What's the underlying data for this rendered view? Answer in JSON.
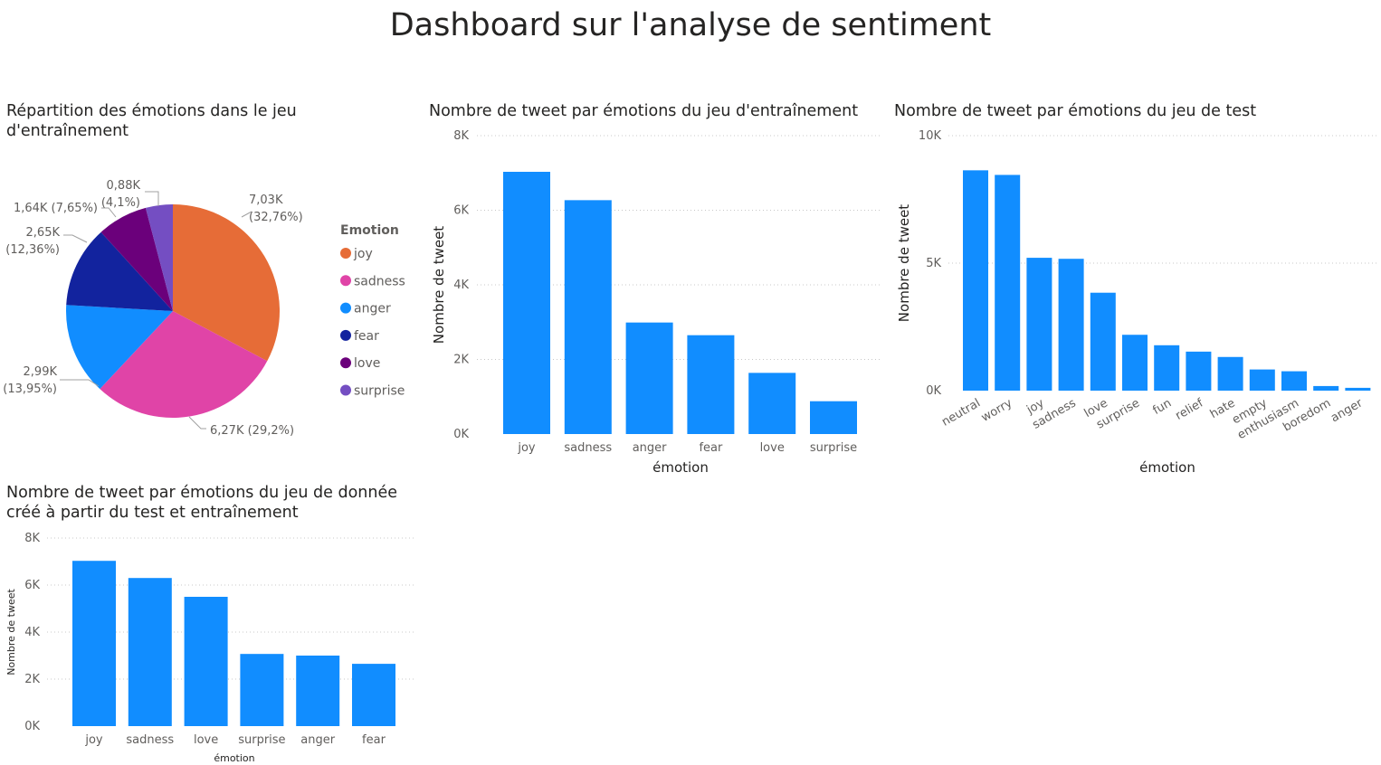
{
  "page": {
    "title": "Dashboard sur l'analyse de sentiment"
  },
  "colors": {
    "bar": "#118DFF",
    "grid": "#c8c8c8",
    "axis_text": "#605E5C",
    "title_text": "#252423",
    "pie": {
      "joy": "#E66C37",
      "sadness": "#E044A7",
      "anger": "#118DFF",
      "fear": "#12239E",
      "love": "#6B007B",
      "surprise": "#744EC2"
    }
  },
  "chart_data": [
    {
      "id": "pie",
      "type": "pie",
      "title": "Répartition des émotions dans le jeu d'entraînement",
      "title_lines": [
        "Répartition des émotions dans le jeu",
        "d'entraînement"
      ],
      "legend_title": "Emotion",
      "legend_position": "right",
      "slices": [
        {
          "label": "joy",
          "value": 7.03,
          "pct": 32.76,
          "value_text": "7,03K",
          "pct_text": "(32,76%)"
        },
        {
          "label": "sadness",
          "value": 6.27,
          "pct": 29.2,
          "value_text": "6,27K",
          "pct_text": "(29,2%)"
        },
        {
          "label": "anger",
          "value": 2.99,
          "pct": 13.95,
          "value_text": "2,99K",
          "pct_text": "(13,95%)"
        },
        {
          "label": "fear",
          "value": 2.65,
          "pct": 12.36,
          "value_text": "2,65K",
          "pct_text": "(12,36%)"
        },
        {
          "label": "love",
          "value": 1.64,
          "pct": 7.65,
          "value_text": "1,64K",
          "pct_text": "(7,65%)"
        },
        {
          "label": "surprise",
          "value": 0.88,
          "pct": 4.1,
          "value_text": "0,88K",
          "pct_text": "(4,1%)"
        }
      ]
    },
    {
      "id": "train",
      "type": "bar",
      "title": "Nombre de tweet par émotions du jeu d'entraînement",
      "xlabel": "émotion",
      "ylabel": "Nombre de tweet",
      "categories": [
        "joy",
        "sadness",
        "anger",
        "fear",
        "love",
        "surprise"
      ],
      "values": [
        7030,
        6270,
        2990,
        2650,
        1640,
        880
      ],
      "ylim": [
        0,
        8000
      ],
      "yticks": [
        0,
        2000,
        4000,
        6000,
        8000
      ],
      "ytick_labels": [
        "0K",
        "2K",
        "4K",
        "6K",
        "8K"
      ],
      "grid": true
    },
    {
      "id": "test",
      "type": "bar",
      "title": "Nombre de tweet par émotions du jeu de test",
      "xlabel": "émotion",
      "ylabel": "Nombre de tweet",
      "categories": [
        "neutral",
        "worry",
        "joy",
        "sadness",
        "love",
        "surprise",
        "fun",
        "relief",
        "hate",
        "empty",
        "enthusiasm",
        "boredom",
        "anger"
      ],
      "values": [
        8640,
        8460,
        5210,
        5170,
        3840,
        2190,
        1780,
        1530,
        1320,
        830,
        760,
        180,
        110
      ],
      "ylim": [
        0,
        10000
      ],
      "yticks": [
        0,
        5000,
        10000
      ],
      "ytick_labels": [
        "0K",
        "5K",
        "10K"
      ],
      "grid": true
    },
    {
      "id": "combined",
      "type": "bar",
      "title": "Nombre de tweet par émotions du jeu de donnée créé à partir du test et entraînement",
      "title_lines": [
        "Nombre de tweet par émotions du jeu de donnée",
        "créé à partir du test et entraînement"
      ],
      "xlabel": "émotion",
      "ylabel": "Nombre de tweet",
      "categories": [
        "joy",
        "sadness",
        "love",
        "surprise",
        "anger",
        "fear"
      ],
      "values": [
        7030,
        6300,
        5500,
        3070,
        3000,
        2650
      ],
      "ylim": [
        0,
        8000
      ],
      "yticks": [
        0,
        2000,
        4000,
        6000,
        8000
      ],
      "ytick_labels": [
        "0K",
        "2K",
        "4K",
        "6K",
        "8K"
      ],
      "grid": true
    }
  ]
}
